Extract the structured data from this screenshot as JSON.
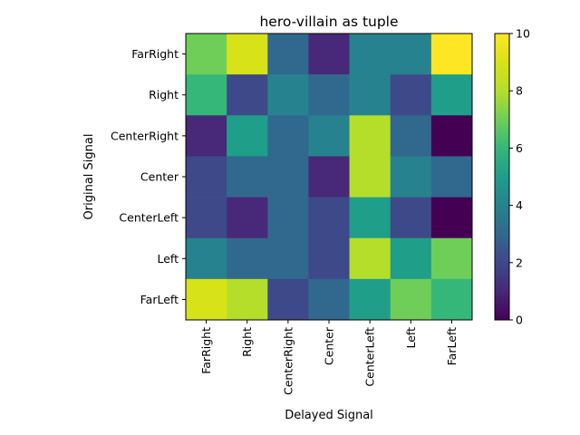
{
  "chart_data": {
    "type": "heatmap",
    "title": "hero-villain as tuple",
    "xlabel": "Delayed Signal",
    "ylabel": "Original Signal",
    "x_categories": [
      "FarRight",
      "Right",
      "CenterRight",
      "Center",
      "CenterLeft",
      "Left",
      "FarLeft"
    ],
    "y_categories": [
      "FarRight",
      "Right",
      "CenterRight",
      "Center",
      "CenterLeft",
      "Left",
      "FarLeft"
    ],
    "values": [
      [
        7,
        9,
        3,
        1,
        4,
        4,
        10
      ],
      [
        6,
        2,
        4,
        3,
        4,
        2,
        5
      ],
      [
        1,
        5,
        3,
        4,
        8,
        3,
        0
      ],
      [
        2,
        3,
        3,
        1,
        8,
        4,
        3
      ],
      [
        2,
        1,
        3,
        2,
        5,
        2,
        0
      ],
      [
        4,
        3,
        3,
        2,
        8,
        5,
        7
      ],
      [
        9,
        8,
        2,
        3,
        5,
        7,
        6
      ]
    ],
    "colorbar": {
      "colormap": "viridis",
      "range": [
        0,
        10
      ],
      "ticks": [
        "0",
        "2",
        "4",
        "6",
        "8",
        "10"
      ]
    },
    "grid": false
  }
}
